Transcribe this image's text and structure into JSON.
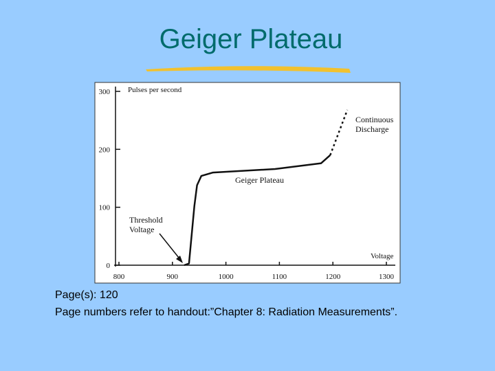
{
  "slide": {
    "title": "Geiger Plateau",
    "notes": [
      "Page(s): 120",
      "Page numbers refer to handout:”Chapter 8: Radiation Measurements”."
    ]
  },
  "chart_data": {
    "type": "line",
    "y_label": "Pulses per second",
    "x_label": "Voltage",
    "annotations": [
      "Threshold Voltage",
      "Geiger Plateau",
      "Continuous Discharge"
    ],
    "series": [
      {
        "color": "#111111",
        "dashed": false,
        "x": [
          922,
          931,
          941,
          946,
          954,
          976,
          1092,
          1178,
          1195
        ],
        "values": [
          0,
          3,
          102,
          138,
          154,
          160,
          166,
          176,
          190
        ]
      },
      {
        "color": "#111111",
        "dashed": true,
        "x": [
          1195,
          1227
        ],
        "values": [
          190,
          268
        ]
      }
    ],
    "xlim": [
      800,
      1300
    ],
    "xticks": [
      800,
      900,
      1000,
      1100,
      1200,
      1300
    ],
    "ylim": [
      0,
      300
    ],
    "yticks": [
      0,
      100,
      200,
      300
    ]
  }
}
